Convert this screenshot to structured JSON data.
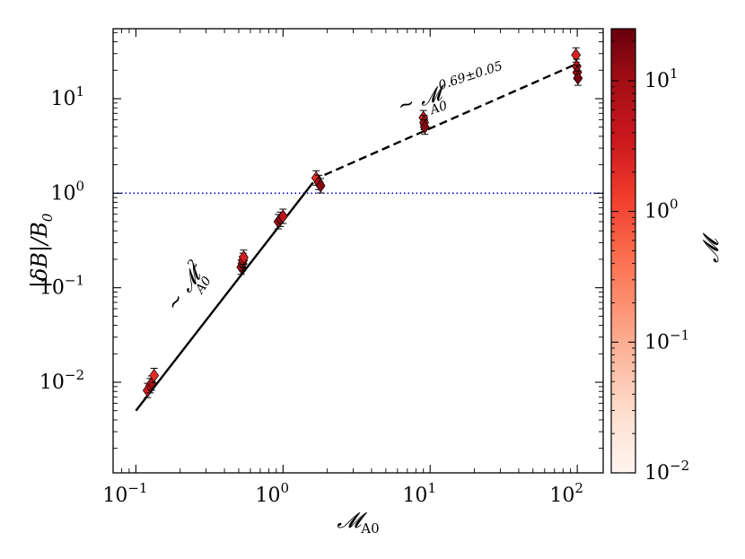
{
  "chart_data": {
    "type": "scatter",
    "title": "",
    "xlabel": "M_A0",
    "ylabel": "|δB|/B_0",
    "xscale": "log",
    "yscale": "log",
    "xlim": [
      0.07,
      150
    ],
    "ylim": [
      0.0011,
      55
    ],
    "x_ticks": [
      {
        "base": "10",
        "exp": "−1",
        "value": 0.1
      },
      {
        "base": "10",
        "exp": "0",
        "value": 1
      },
      {
        "base": "10",
        "exp": "1",
        "value": 10
      },
      {
        "base": "10",
        "exp": "2",
        "value": 100
      }
    ],
    "y_ticks": [
      {
        "base": "10",
        "exp": "−2",
        "value": 0.01
      },
      {
        "base": "10",
        "exp": "−1",
        "value": 0.1
      },
      {
        "base": "10",
        "exp": "0",
        "value": 1
      },
      {
        "base": "10",
        "exp": "1",
        "value": 10
      }
    ],
    "points": [
      {
        "x": 0.12,
        "y": 0.0082,
        "m": 3
      },
      {
        "x": 0.125,
        "y": 0.0092,
        "m": 5
      },
      {
        "x": 0.128,
        "y": 0.0098,
        "m": 8
      },
      {
        "x": 0.133,
        "y": 0.0118,
        "m": 2
      },
      {
        "x": 0.52,
        "y": 0.165,
        "m": 6
      },
      {
        "x": 0.53,
        "y": 0.18,
        "m": 12
      },
      {
        "x": 0.535,
        "y": 0.195,
        "m": 4
      },
      {
        "x": 0.54,
        "y": 0.21,
        "m": 3
      },
      {
        "x": 0.93,
        "y": 0.5,
        "m": 9
      },
      {
        "x": 0.96,
        "y": 0.53,
        "m": 14
      },
      {
        "x": 1.0,
        "y": 0.57,
        "m": 5
      },
      {
        "x": 1.68,
        "y": 1.45,
        "m": 2
      },
      {
        "x": 1.75,
        "y": 1.3,
        "m": 6
      },
      {
        "x": 1.8,
        "y": 1.2,
        "m": 15
      },
      {
        "x": 9.0,
        "y": 6.3,
        "m": 3
      },
      {
        "x": 9.1,
        "y": 5.6,
        "m": 8
      },
      {
        "x": 9.2,
        "y": 5.0,
        "m": 16
      },
      {
        "x": 98,
        "y": 29,
        "m": 2.5
      },
      {
        "x": 99,
        "y": 22,
        "m": 6
      },
      {
        "x": 100,
        "y": 19,
        "m": 10
      },
      {
        "x": 101,
        "y": 16.5,
        "m": 20
      }
    ],
    "fit_lines": [
      {
        "style": "solid",
        "x": [
          0.1,
          1.6
        ],
        "y": [
          0.005,
          1.3
        ],
        "label_base": "∼ 𝓜",
        "label_sup": "2",
        "label_sub": "A0"
      },
      {
        "style": "dashed",
        "x": [
          1.6,
          100
        ],
        "y": [
          1.38,
          23.5
        ],
        "label_base": "∼ 𝓜",
        "label_sup": "0.69±0.05",
        "label_sub": "A0"
      }
    ],
    "reference_line": {
      "y": 1.0,
      "style": "dotted",
      "color": "#0000dd"
    },
    "colorbar": {
      "label": "𝓜",
      "scale": "log",
      "range": [
        0.01,
        25
      ],
      "ticks": [
        {
          "base": "10",
          "exp": "−2",
          "value": 0.01
        },
        {
          "base": "10",
          "exp": "−1",
          "value": 0.1
        },
        {
          "base": "10",
          "exp": "0",
          "value": 1
        },
        {
          "base": "10",
          "exp": "1",
          "value": 10
        }
      ],
      "colormap": "Reds",
      "colors": [
        "#fff5f0",
        "#fee0d2",
        "#fcbba1",
        "#fc9272",
        "#fb6a4a",
        "#ef3b2c",
        "#cb181d",
        "#a50f15",
        "#67000d"
      ]
    }
  }
}
